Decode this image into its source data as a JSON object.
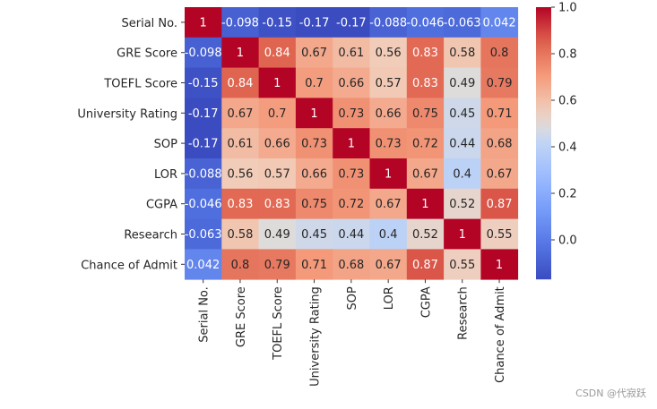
{
  "chart_data": {
    "type": "heatmap",
    "title": "",
    "xlabel": "",
    "ylabel": "",
    "row_labels": [
      "Serial No.",
      "GRE Score",
      "TOEFL Score",
      "University Rating",
      "SOP",
      "LOR",
      "CGPA",
      "Research",
      "Chance of Admit"
    ],
    "col_labels": [
      "Serial No.",
      "GRE Score",
      "TOEFL Score",
      "University Rating",
      "SOP",
      "LOR",
      "CGPA",
      "Research",
      "Chance of Admit"
    ],
    "values": [
      [
        1,
        -0.098,
        -0.15,
        -0.17,
        -0.17,
        -0.088,
        -0.046,
        -0.063,
        0.042
      ],
      [
        -0.098,
        1,
        0.84,
        0.67,
        0.61,
        0.56,
        0.83,
        0.58,
        0.8
      ],
      [
        -0.15,
        0.84,
        1,
        0.7,
        0.66,
        0.57,
        0.83,
        0.49,
        0.79
      ],
      [
        -0.17,
        0.67,
        0.7,
        1,
        0.73,
        0.66,
        0.75,
        0.45,
        0.71
      ],
      [
        -0.17,
        0.61,
        0.66,
        0.73,
        1,
        0.73,
        0.72,
        0.44,
        0.68
      ],
      [
        -0.088,
        0.56,
        0.57,
        0.66,
        0.73,
        1,
        0.67,
        0.4,
        0.67
      ],
      [
        -0.046,
        0.83,
        0.83,
        0.75,
        0.72,
        0.67,
        1,
        0.52,
        0.87
      ],
      [
        -0.063,
        0.58,
        0.49,
        0.45,
        0.44,
        0.4,
        0.52,
        1,
        0.55
      ],
      [
        0.042,
        0.8,
        0.79,
        0.71,
        0.68,
        0.67,
        0.87,
        0.55,
        1
      ]
    ],
    "annotations": [
      [
        "1",
        "-0.098",
        "-0.15",
        "-0.17",
        "-0.17",
        "-0.088",
        "-0.046",
        "-0.063",
        "0.042"
      ],
      [
        "-0.098",
        "1",
        "0.84",
        "0.67",
        "0.61",
        "0.56",
        "0.83",
        "0.58",
        "0.8"
      ],
      [
        "-0.15",
        "0.84",
        "1",
        "0.7",
        "0.66",
        "0.57",
        "0.83",
        "0.49",
        "0.79"
      ],
      [
        "-0.17",
        "0.67",
        "0.7",
        "1",
        "0.73",
        "0.66",
        "0.75",
        "0.45",
        "0.71"
      ],
      [
        "-0.17",
        "0.61",
        "0.66",
        "0.73",
        "1",
        "0.73",
        "0.72",
        "0.44",
        "0.68"
      ],
      [
        "-0.088",
        "0.56",
        "0.57",
        "0.66",
        "0.73",
        "1",
        "0.67",
        "0.4",
        "0.67"
      ],
      [
        "-0.046",
        "0.83",
        "0.83",
        "0.75",
        "0.72",
        "0.67",
        "1",
        "0.52",
        "0.87"
      ],
      [
        "-0.063",
        "0.58",
        "0.49",
        "0.45",
        "0.44",
        "0.4",
        "0.52",
        "1",
        "0.55"
      ],
      [
        "0.042",
        "0.8",
        "0.79",
        "0.71",
        "0.68",
        "0.67",
        "0.87",
        "0.55",
        "1"
      ]
    ],
    "colormap": "coolwarm",
    "vmin": -0.17,
    "vmax": 1.0,
    "colorbar": {
      "ticks": [
        0.0,
        0.2,
        0.4,
        0.6,
        0.8,
        1.0
      ],
      "tick_labels": [
        "0.0",
        "0.2",
        "0.4",
        "0.6",
        "0.8",
        "1.0"
      ]
    },
    "grid": false,
    "legend": "colorbar-right"
  },
  "watermark": "CSDN @代寂跃"
}
